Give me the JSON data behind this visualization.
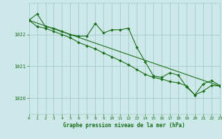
{
  "bg_color": "#cce8e8",
  "grid_color": "#aacccc",
  "line_color": "#1a6e1a",
  "marker_color": "#1a6e1a",
  "xlabel": "Graphe pression niveau de la mer (hPa)",
  "xlim": [
    0,
    23
  ],
  "ylim": [
    1019.5,
    1023.0
  ],
  "yticks": [
    1020,
    1021,
    1022
  ],
  "xticks": [
    0,
    1,
    2,
    3,
    4,
    5,
    6,
    7,
    8,
    9,
    10,
    11,
    12,
    13,
    14,
    15,
    16,
    17,
    18,
    19,
    20,
    21,
    22,
    23
  ],
  "series1_x": [
    0,
    1,
    2,
    3,
    4,
    5,
    6,
    7,
    8,
    9,
    10,
    11,
    12,
    13,
    14,
    15,
    16,
    17,
    18,
    19,
    20,
    21,
    22,
    23
  ],
  "series1_y": [
    1022.45,
    1022.65,
    1022.25,
    1022.2,
    1022.1,
    1022.0,
    1021.95,
    1021.95,
    1022.35,
    1022.05,
    1022.15,
    1022.15,
    1022.2,
    1021.6,
    1021.15,
    1020.7,
    1020.65,
    1020.8,
    1020.72,
    1020.35,
    1020.1,
    1020.45,
    1020.55,
    1020.4
  ],
  "series2_x": [
    0,
    1,
    2,
    3,
    4,
    5,
    6,
    7,
    8,
    9,
    10,
    11,
    12,
    13,
    14,
    15,
    16,
    17,
    18,
    19,
    20,
    21,
    22,
    23
  ],
  "series2_y": [
    1022.45,
    1022.25,
    1022.2,
    1022.1,
    1022.0,
    1021.9,
    1021.75,
    1021.65,
    1021.55,
    1021.42,
    1021.3,
    1021.18,
    1021.05,
    1020.9,
    1020.75,
    1020.65,
    1020.6,
    1020.52,
    1020.48,
    1020.38,
    1020.1,
    1020.22,
    1020.4,
    1020.38
  ],
  "series3_x": [
    0,
    23
  ],
  "series3_y": [
    1022.45,
    1020.38
  ]
}
